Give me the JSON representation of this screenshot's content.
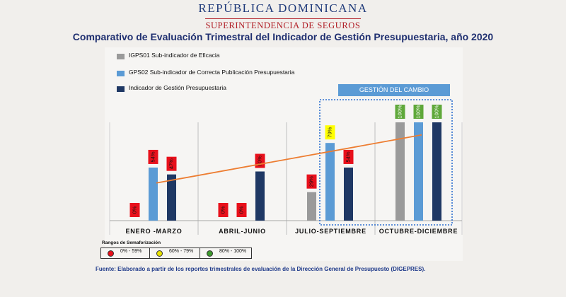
{
  "header": {
    "republica": "REPÚBLICA DOMINICANA",
    "superintendencia": "SUPERINTENDENCIA DE SEGUROS",
    "title": "Comparativo de Evaluación Trimestral del Indicador de Gestión Presupuestaria, año 2020"
  },
  "legend": [
    {
      "label": "IGPS01 Sub-indicador de Eficacia",
      "color": "#9a9a9a"
    },
    {
      "label": "GPS02 Sub-indicador de Correcta Publicación Presupuestaria",
      "color": "#5b9bd5"
    },
    {
      "label": "Indicador de Gestión Presupuestaria",
      "color": "#1f3864"
    }
  ],
  "highlight_box": {
    "label": "GESTIÓN DEL CAMBIO"
  },
  "chart_data": {
    "type": "bar",
    "categories": [
      "ENERO -MARZO",
      "ABRIL-JUNIO",
      "JULIO-SEPTIEMBRE",
      "OCTUBRE-DICIEMBRE"
    ],
    "ylim": [
      0,
      100
    ],
    "grid": false,
    "series": [
      {
        "name": "IGPS01 Sub-indicador de Eficacia",
        "color": "#9a9a9a",
        "values": [
          0,
          0,
          29,
          100
        ],
        "labels": [
          "0%",
          "0%",
          "29%",
          "100%"
        ]
      },
      {
        "name": "GPS02 Sub-indicador de Correcta Publicación Presupuestaria",
        "color": "#5b9bd5",
        "values": [
          54,
          0,
          79,
          100
        ],
        "labels": [
          "54%",
          "0%",
          "79%",
          "100%"
        ]
      },
      {
        "name": "Indicador de Gestión Presupuestaria",
        "color": "#1f3864",
        "values": [
          47,
          50,
          54,
          100
        ],
        "labels": [
          "47%",
          "50%",
          "54%",
          "100%"
        ]
      }
    ],
    "trendline": {
      "series": "Indicador de Gestión Presupuestaria",
      "color": "#ed7d31"
    },
    "label_colors": {
      "red": "#e8101b",
      "yellow": "#ffff00",
      "green": "#5fa83a"
    }
  },
  "semaforo": {
    "title": "Rangos de Semaforización",
    "ranges": [
      {
        "label": "0% - 59%",
        "color": "#e8101b"
      },
      {
        "label": "60% - 79%",
        "color": "#e8e200"
      },
      {
        "label": "80% - 100%",
        "color": "#3d9a2e"
      }
    ]
  },
  "source": "Fuente: Elaborado a partir de los reportes trimestrales de evaluación de la Dirección General de Presupuesto (DIGEPRES)."
}
